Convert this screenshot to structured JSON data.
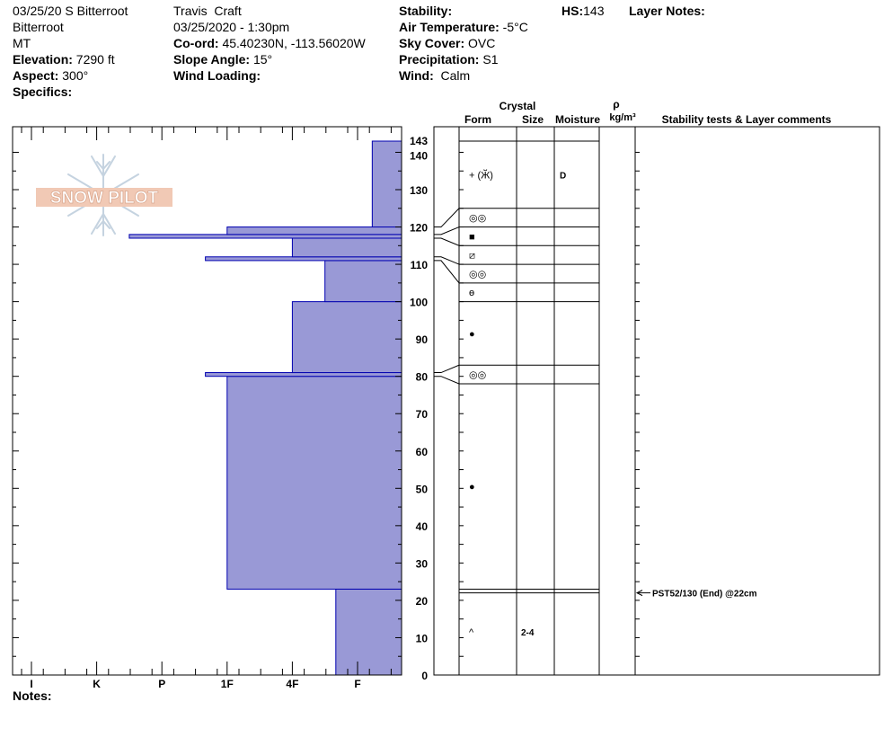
{
  "header": {
    "col1": {
      "location": "03/25/20 S Bitterroot",
      "range": "Bitterroot",
      "state": "MT",
      "elevation_label": "Elevation:",
      "elevation": "7290 ft",
      "aspect_label": "Aspect:",
      "aspect": "300°",
      "specifics_label": "Specifics:"
    },
    "col2": {
      "observer": "Travis  Craft",
      "datetime": "03/25/2020 - 1:30pm",
      "coord_label": "Co-ord:",
      "coord": "45.40230N, -113.56020W",
      "slope_label": "Slope Angle:",
      "slope": "15°",
      "wind_loading_label": "Wind Loading:"
    },
    "col3": {
      "stability_label": "Stability:",
      "air_temp_label": "Air Temperature:",
      "air_temp": "-5°C",
      "sky_label": "Sky Cover:",
      "sky": "OVC",
      "precip_label": "Precipitation:",
      "precip": "S1",
      "wind_label": "Wind:",
      "wind": "Calm"
    },
    "hs_label": "HS:",
    "hs": "143",
    "layer_notes_label": "Layer Notes:"
  },
  "notes_label": "Notes:",
  "logo_text": "SNOW PILOT",
  "colors": {
    "hardness_fill": "#9999d6",
    "hardness_stroke": "#0000b0"
  },
  "chart_data": {
    "type": "snow-profile",
    "hardness_axis": {
      "ticks": [
        "I",
        "K",
        "P",
        "1F",
        "4F",
        "F"
      ]
    },
    "height_axis": {
      "range": [
        0,
        143
      ],
      "tick_labels": [
        0,
        10,
        20,
        30,
        40,
        50,
        60,
        70,
        80,
        90,
        100,
        110,
        120,
        130,
        140,
        143
      ]
    },
    "hardness_layers": [
      {
        "bottom": 0,
        "top": 23,
        "hardness": "F+"
      },
      {
        "bottom": 23,
        "top": 80,
        "hardness": "1F"
      },
      {
        "bottom": 80,
        "top": 81,
        "hardness": "1F+"
      },
      {
        "bottom": 81,
        "top": 100,
        "hardness": "4F"
      },
      {
        "bottom": 100,
        "top": 111,
        "hardness": "4F-F"
      },
      {
        "bottom": 111,
        "top": 112,
        "hardness": "1F+"
      },
      {
        "bottom": 112,
        "top": 117,
        "hardness": "4F"
      },
      {
        "bottom": 117,
        "top": 118,
        "hardness": "K-P"
      },
      {
        "bottom": 118,
        "top": 120,
        "hardness": "1F"
      },
      {
        "bottom": 120,
        "top": 143,
        "hardness": "F-"
      }
    ],
    "layer_table": {
      "columns": {
        "crystal": "Crystal",
        "form": "Form",
        "size": "Size",
        "moisture": "Moisture",
        "rho": "ρ",
        "density_unit": "kg/m³",
        "comments": "Stability tests & Layer comments"
      },
      "boundaries": [
        143,
        125,
        120,
        115,
        110,
        105,
        100,
        83,
        78,
        23,
        0
      ],
      "connectors": [
        {
          "from": 125,
          "to": 120
        },
        {
          "from": 120,
          "to": 118
        },
        {
          "from": 115,
          "to": 117
        },
        {
          "from": 110,
          "to": 112
        },
        {
          "from": 105,
          "to": 111
        },
        {
          "from": 83,
          "to": 81
        },
        {
          "from": 78,
          "to": 80
        }
      ],
      "rows": [
        {
          "mid": 134,
          "form": "+ (Ӂ)",
          "size": "",
          "moisture": "D"
        },
        {
          "mid": 122.5,
          "form": "◎◎",
          "size": "",
          "moisture": ""
        },
        {
          "mid": 117.5,
          "form": "■",
          "size": "",
          "moisture": ""
        },
        {
          "mid": 112.5,
          "form": "⧄",
          "size": "",
          "moisture": ""
        },
        {
          "mid": 107.5,
          "form": "◎◎",
          "size": "",
          "moisture": ""
        },
        {
          "mid": 102.5,
          "form": "ɵ",
          "size": "",
          "moisture": ""
        },
        {
          "mid": 91.5,
          "form": "●",
          "size": "",
          "moisture": ""
        },
        {
          "mid": 80.5,
          "form": "◎◎",
          "size": "",
          "moisture": ""
        },
        {
          "mid": 50.5,
          "form": "●",
          "size": "",
          "moisture": ""
        },
        {
          "mid": 11.5,
          "form": "^",
          "size": "2-4",
          "moisture": ""
        }
      ]
    },
    "stability_tests": [
      {
        "height": 22,
        "text": "PST52/130 (End) @22cm"
      }
    ]
  }
}
